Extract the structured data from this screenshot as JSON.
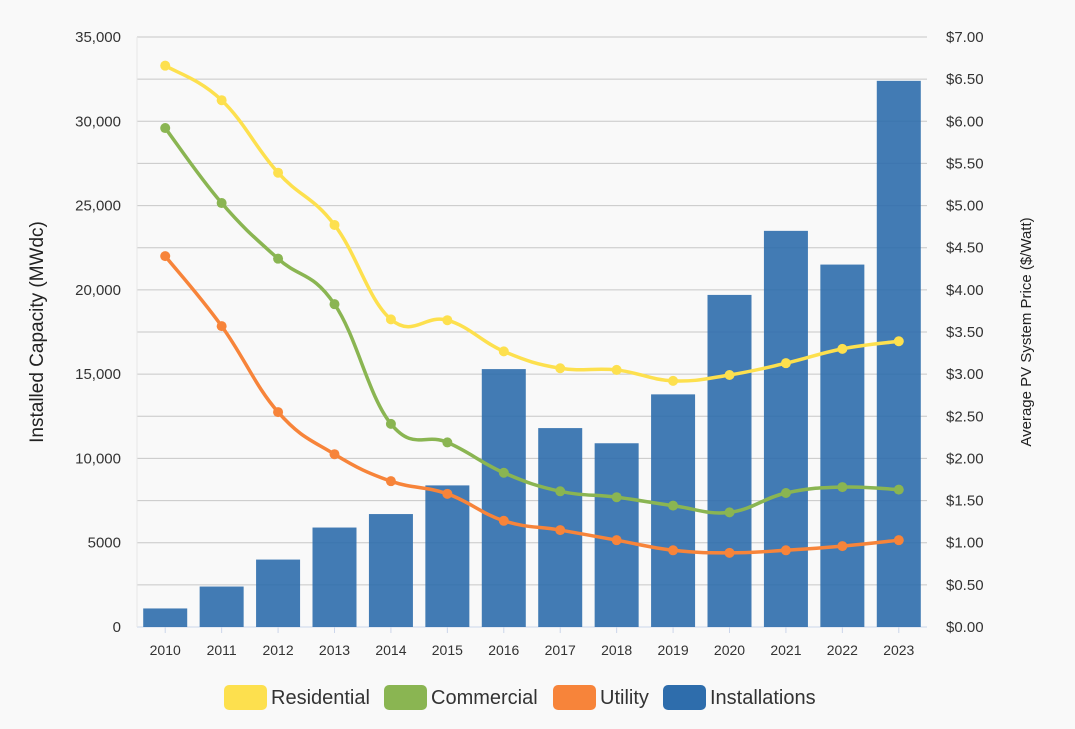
{
  "chart_data": {
    "type": "bar+line",
    "title": "",
    "categories": [
      "2010",
      "2011",
      "2012",
      "2013",
      "2014",
      "2015",
      "2016",
      "2017",
      "2018",
      "2019",
      "2020",
      "2021",
      "2022",
      "2023"
    ],
    "ylabel_left": "Installed Capacity (MWdc)",
    "ylabel_right": "Average PV System Price ($/Watt)",
    "ylim_left": [
      0,
      35000
    ],
    "ylim_right": [
      0,
      7
    ],
    "left_ticks": [
      "0",
      "5000",
      "10,000",
      "15,000",
      "20,000",
      "25,000",
      "30,000",
      "35,000"
    ],
    "right_ticks": [
      "$0.00",
      "$0.50",
      "$1.00",
      "$1.50",
      "$2.00",
      "$2.50",
      "$3.00",
      "$3.50",
      "$4.00",
      "$4.50",
      "$5.00",
      "$5.50",
      "$6.00",
      "$6.50",
      "$7.00"
    ],
    "grid": true,
    "legend_position": "bottom",
    "bars": {
      "name": "Installations",
      "axis": "left",
      "color": "#2e6dac",
      "values": [
        1100,
        2400,
        4000,
        5900,
        6700,
        8400,
        15300,
        11800,
        10900,
        13800,
        19700,
        23500,
        21500,
        32400
      ]
    },
    "series": [
      {
        "name": "Residential",
        "axis": "right",
        "color": "#fde04e",
        "values": [
          6.66,
          6.25,
          5.39,
          4.77,
          3.65,
          3.64,
          3.27,
          3.07,
          3.05,
          2.92,
          2.99,
          3.13,
          3.3,
          3.39
        ]
      },
      {
        "name": "Commercial",
        "axis": "right",
        "color": "#8ab552",
        "values": [
          5.92,
          5.03,
          4.37,
          3.83,
          2.41,
          2.19,
          1.83,
          1.61,
          1.54,
          1.44,
          1.36,
          1.59,
          1.66,
          1.63
        ]
      },
      {
        "name": "Utility",
        "axis": "right",
        "color": "#f7843a",
        "values": [
          4.4,
          3.57,
          2.55,
          2.05,
          1.73,
          1.58,
          1.26,
          1.15,
          1.03,
          0.91,
          0.88,
          0.91,
          0.96,
          1.03
        ]
      }
    ],
    "legend": [
      "Residential",
      "Commercial",
      "Utility",
      "Installations"
    ]
  }
}
